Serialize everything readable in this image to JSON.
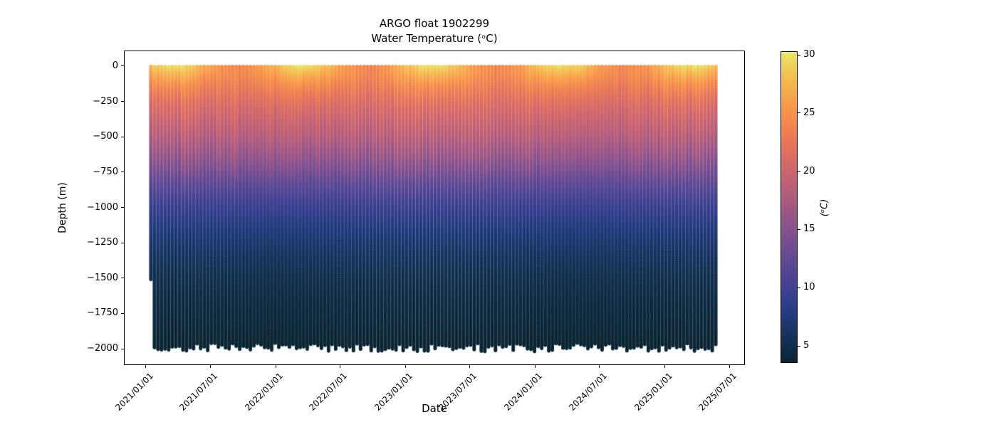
{
  "figure": {
    "title_line1": "ARGO float 1902299",
    "title_line2": "Water Temperature (ᵒC)",
    "xlabel": "Date",
    "ylabel": "Depth (m)"
  },
  "chart_data": {
    "type": "heatmap",
    "title": "ARGO float 1902299",
    "subtitle": "Water Temperature (ᵒC)",
    "xlabel": "Date",
    "ylabel": "Depth (m)",
    "grid": false,
    "x_axis": {
      "start": "2020-11-02",
      "end": "2025-08-10",
      "ticks": [
        {
          "date": "2021-01-01",
          "label": "2021/01/01"
        },
        {
          "date": "2021-07-01",
          "label": "2021/07/01"
        },
        {
          "date": "2022-01-01",
          "label": "2022/01/01"
        },
        {
          "date": "2022-07-01",
          "label": "2022/07/01"
        },
        {
          "date": "2023-01-01",
          "label": "2023/01/01"
        },
        {
          "date": "2023-07-01",
          "label": "2023/07/01"
        },
        {
          "date": "2024-01-01",
          "label": "2024/01/01"
        },
        {
          "date": "2024-07-01",
          "label": "2024/07/01"
        },
        {
          "date": "2025-01-01",
          "label": "2025/01/01"
        },
        {
          "date": "2025-07-01",
          "label": "2025/07/01"
        }
      ]
    },
    "y_axis": {
      "min": -2110,
      "max": 105,
      "ticks": [
        {
          "v": 0,
          "label": "0"
        },
        {
          "v": -250,
          "label": "−250"
        },
        {
          "v": -500,
          "label": "−500"
        },
        {
          "v": -750,
          "label": "−750"
        },
        {
          "v": -1000,
          "label": "−1000"
        },
        {
          "v": -1250,
          "label": "−1250"
        },
        {
          "v": -1500,
          "label": "−1500"
        },
        {
          "v": -1750,
          "label": "−1750"
        },
        {
          "v": -2000,
          "label": "−2000"
        }
      ]
    },
    "colorbar": {
      "label": "(ᵒC)",
      "vmin": 3.6,
      "vmax": 30.25,
      "ticks": [
        {
          "v": 5,
          "label": "5"
        },
        {
          "v": 10,
          "label": "10"
        },
        {
          "v": 15,
          "label": "15"
        },
        {
          "v": 20,
          "label": "20"
        },
        {
          "v": 25,
          "label": "25"
        },
        {
          "v": 30,
          "label": "30"
        }
      ]
    },
    "colormap": {
      "name": "thermal",
      "stops": [
        [
          0.0,
          "#0a2533"
        ],
        [
          0.05,
          "#112e4c"
        ],
        [
          0.1,
          "#173464"
        ],
        [
          0.15,
          "#223a7d"
        ],
        [
          0.2,
          "#333e8d"
        ],
        [
          0.25,
          "#454293"
        ],
        [
          0.3,
          "#574793"
        ],
        [
          0.35,
          "#694b92"
        ],
        [
          0.4,
          "#7c4f8f"
        ],
        [
          0.45,
          "#8f548a"
        ],
        [
          0.5,
          "#a25883"
        ],
        [
          0.55,
          "#b55d7b"
        ],
        [
          0.6,
          "#c76371"
        ],
        [
          0.65,
          "#d86a65"
        ],
        [
          0.7,
          "#e67458"
        ],
        [
          0.75,
          "#f08150"
        ],
        [
          0.8,
          "#f6914a"
        ],
        [
          0.85,
          "#f8a24a"
        ],
        [
          0.9,
          "#f6b64e"
        ],
        [
          0.95,
          "#f0cd58"
        ],
        [
          1.0,
          "#e9e968"
        ]
      ]
    },
    "series_extent": {
      "first_profile_date": "2021-01-15",
      "last_profile_date": "2025-05-28",
      "profile_interval_days": 10,
      "surface_depth_m": -3,
      "typical_max_depth_m": -1990,
      "max_depth_jitter_m": 30,
      "first_profile_max_depth_m": -1510
    },
    "mean_temperature_profile": [
      [
        0,
        26.8
      ],
      [
        -40,
        26.2
      ],
      [
        -80,
        25.2
      ],
      [
        -120,
        24.2
      ],
      [
        -160,
        23.3
      ],
      [
        -200,
        22.5
      ],
      [
        -250,
        21.6
      ],
      [
        -300,
        20.9
      ],
      [
        -350,
        20.2
      ],
      [
        -400,
        19.6
      ],
      [
        -450,
        19.0
      ],
      [
        -500,
        18.4
      ],
      [
        -550,
        17.6
      ],
      [
        -600,
        16.8
      ],
      [
        -650,
        15.9
      ],
      [
        -700,
        14.9
      ],
      [
        -750,
        13.9
      ],
      [
        -800,
        12.8
      ],
      [
        -850,
        11.8
      ],
      [
        -900,
        10.9
      ],
      [
        -950,
        10.1
      ],
      [
        -1000,
        9.3
      ],
      [
        -1050,
        8.7
      ],
      [
        -1100,
        8.1
      ],
      [
        -1150,
        7.6
      ],
      [
        -1200,
        7.1
      ],
      [
        -1250,
        6.7
      ],
      [
        -1300,
        6.3
      ],
      [
        -1350,
        5.9
      ],
      [
        -1400,
        5.6
      ],
      [
        -1450,
        5.3
      ],
      [
        -1500,
        5.0
      ],
      [
        -1550,
        4.8
      ],
      [
        -1600,
        4.6
      ],
      [
        -1650,
        4.4
      ],
      [
        -1700,
        4.2
      ],
      [
        -1750,
        4.1
      ],
      [
        -1800,
        4.0
      ],
      [
        -1850,
        3.9
      ],
      [
        -1900,
        3.8
      ],
      [
        -1950,
        3.7
      ],
      [
        -2000,
        3.6
      ]
    ],
    "seasonal_surface": {
      "mean_c": 26.8,
      "amplitude_c": 2.9,
      "warmest_day_of_year": 75,
      "decay_depth_m": 120
    }
  }
}
